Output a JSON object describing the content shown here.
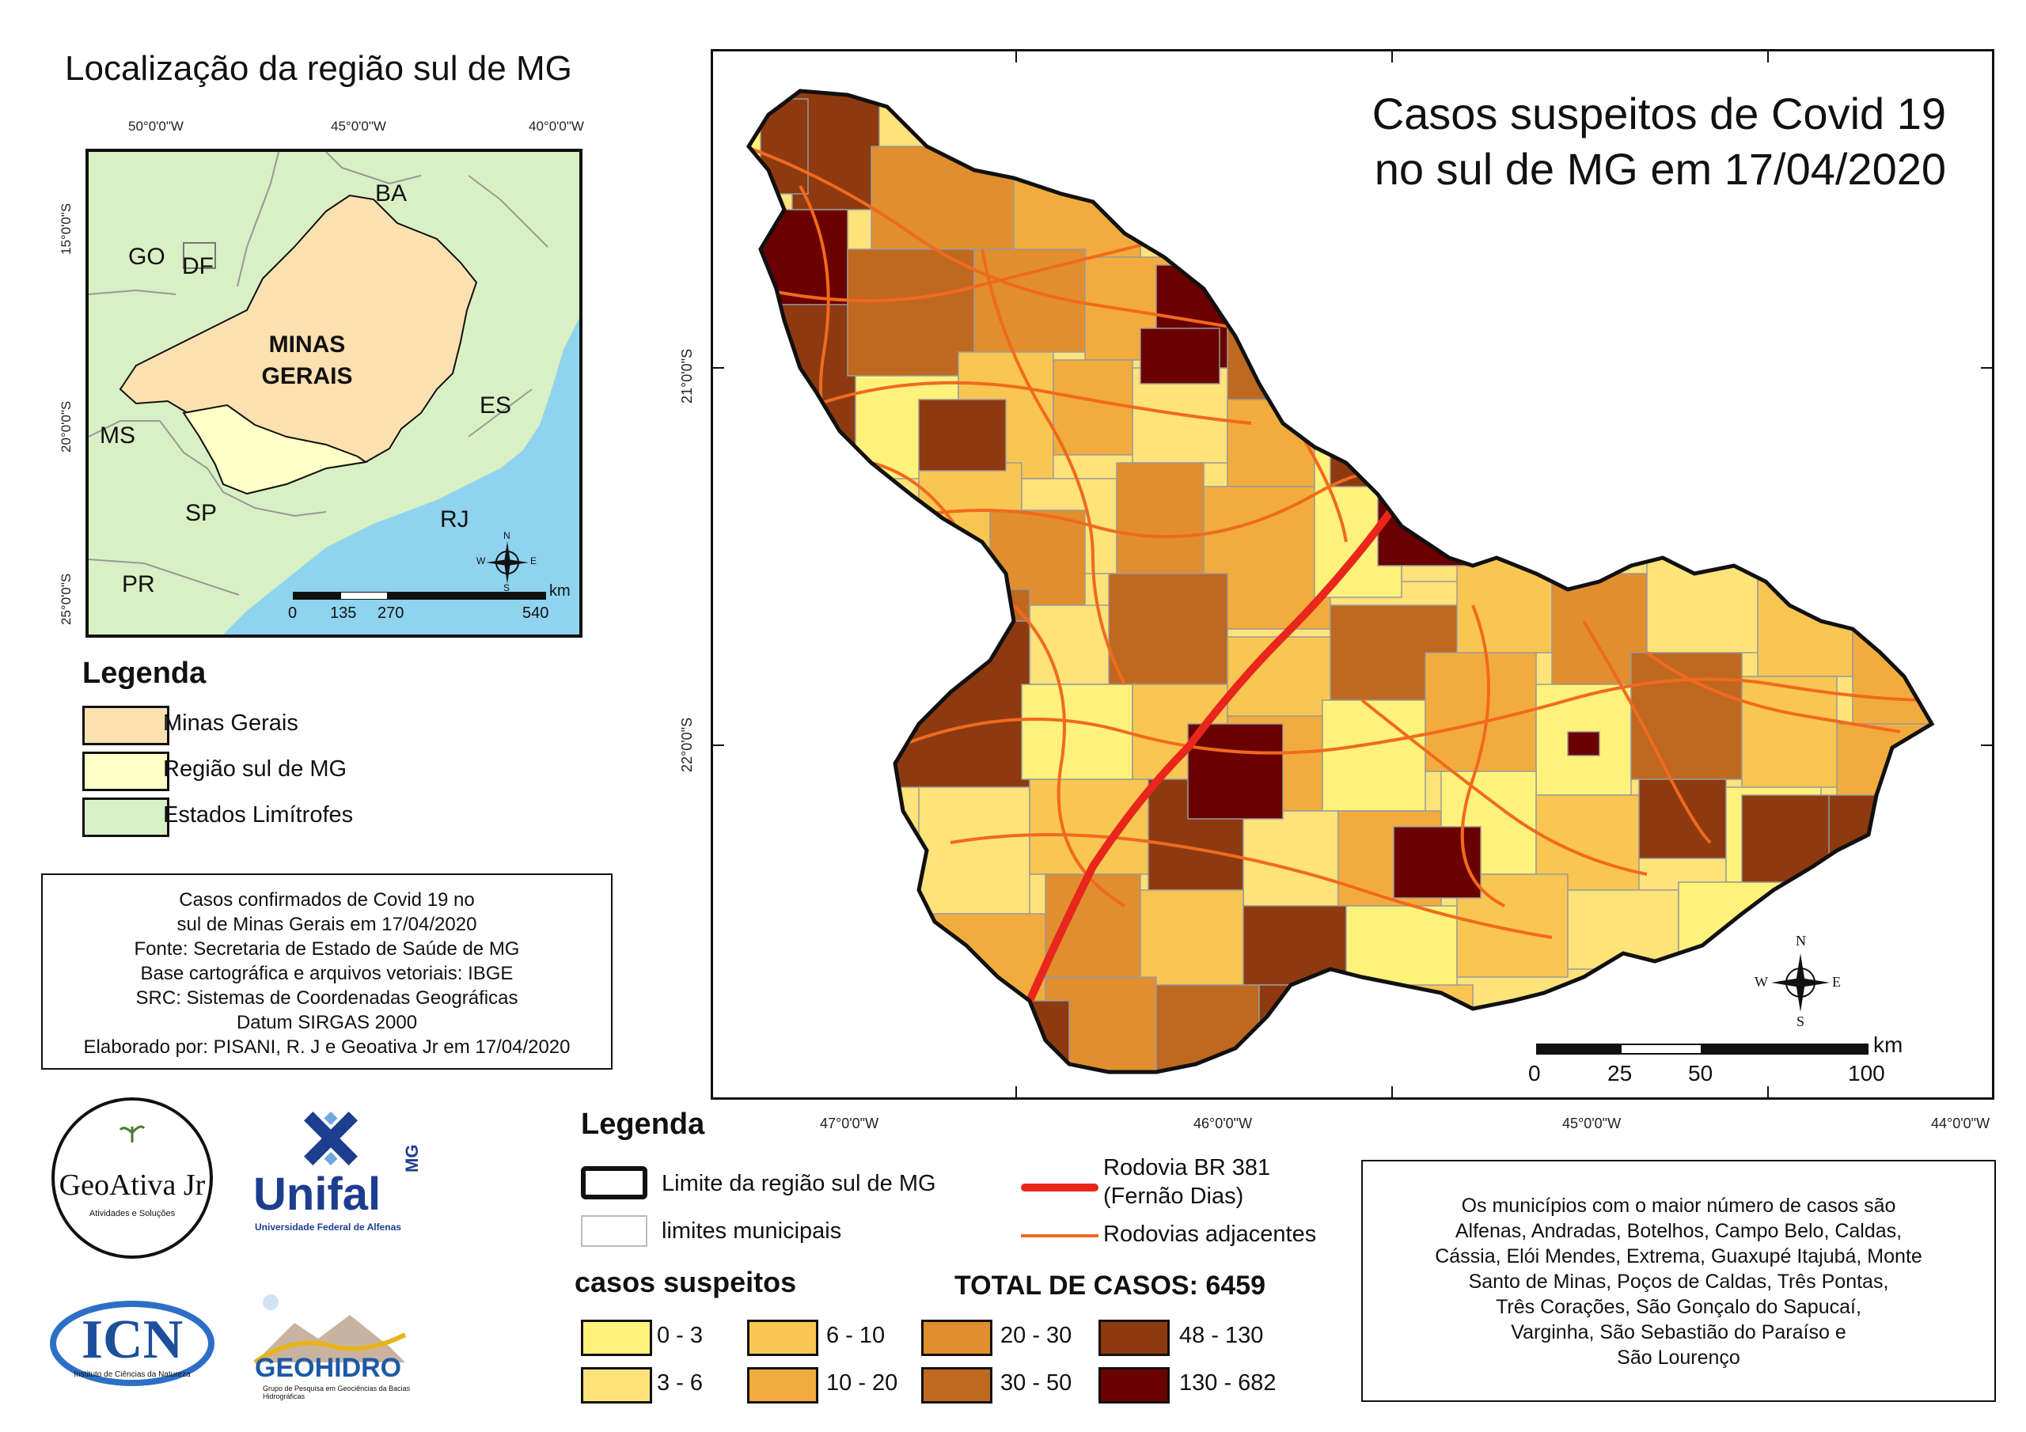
{
  "inset": {
    "title": "Localização da região sul de MG",
    "lon_labels": [
      "50°0'0\"W",
      "45°0'0\"W",
      "40°0'0\"W"
    ],
    "lat_labels": [
      "15°0'0\"S",
      "20°0'0\"S",
      "25°0'0\"S"
    ],
    "states": {
      "ba": "BA",
      "go": "GO",
      "df": "DF",
      "es": "ES",
      "ms": "MS",
      "sp": "SP",
      "rj": "RJ",
      "pr": "PR"
    },
    "mg_line1": "MINAS",
    "mg_line2": "GERAIS",
    "scale": {
      "unit": "km",
      "ticks": [
        "0",
        "135",
        "270",
        "540"
      ]
    },
    "compass": {
      "n": "N",
      "s": "S",
      "e": "E",
      "w": "W"
    }
  },
  "legend_left": {
    "title": "Legenda",
    "items": [
      {
        "label": "Minas Gerais",
        "color": "#fbe0b0"
      },
      {
        "label": "Região sul de MG",
        "color": "#ffffc8"
      },
      {
        "label": "Estados Limítrofes",
        "color": "#d9f0c4"
      }
    ]
  },
  "info": {
    "lines": [
      "Casos confirmados de Covid 19 no",
      "sul de Minas Gerais em 17/04/2020",
      "Fonte: Secretaria de Estado de Saúde de MG",
      "Base cartográfica e arquivos vetoriais: IBGE",
      "SRC: Sistemas de Coordenadas Geográficas",
      "Datum SIRGAS 2000",
      "Elaborado por: PISANI, R. J e Geoativa Jr em 17/04/2020"
    ]
  },
  "main_map": {
    "title_line1": "Casos suspeitos de Covid 19",
    "title_line2": "no sul de MG em 17/04/2020",
    "lon_labels": [
      "47°0'0\"W",
      "46°0'0\"W",
      "45°0'0\"W",
      "44°0'0\"W"
    ],
    "lat_labels": [
      "21°0'0\"S",
      "22°0'0\"S"
    ],
    "scale": {
      "unit": "km",
      "ticks": [
        "0",
        "25",
        "50",
        "100"
      ]
    },
    "compass": {
      "n": "N",
      "s": "S",
      "e": "E",
      "w": "W"
    }
  },
  "legend_bottom": {
    "title": "Legenda",
    "limit_label": "Limite da região sul de MG",
    "municipal_label": "limites municipais",
    "br381_line1": "Rodovia BR 381",
    "br381_line2": "(Fernão Dias)",
    "roads_label": "Rodovias adjacentes",
    "classes_title": "casos suspeitos",
    "total_label": "TOTAL DE CASOS: 6459",
    "classes": [
      {
        "label": "0 - 3",
        "color": "#fff27a"
      },
      {
        "label": "3 - 6",
        "color": "#fee27a"
      },
      {
        "label": "6 - 10",
        "color": "#f9c652"
      },
      {
        "label": "10 - 20",
        "color": "#f2ac3e"
      },
      {
        "label": "20 - 30",
        "color": "#e08e2e"
      },
      {
        "label": "30 - 50",
        "color": "#bf6820"
      },
      {
        "label": "48 - 130",
        "color": "#8e3a10"
      },
      {
        "label": "130 - 682",
        "color": "#6a0000"
      }
    ]
  },
  "note": {
    "lines": [
      "Os municípios com o maior número de casos são",
      "Alfenas, Andradas, Botelhos, Campo Belo, Caldas,",
      "Cássia, Elói Mendes, Extrema, Guaxupé Itajubá, Monte",
      "Santo de Minas, Poços de Caldas, Três Pontas,",
      "Três Corações, São Gonçalo do Sapucaí,",
      "Varginha, São Sebastião do Paraíso e",
      "São Lourenço"
    ]
  },
  "logos": {
    "geoativa": "GeoAtiva Jr",
    "geoativa_sub": "Atividades e Soluções",
    "unifal": "Unifal",
    "unifal_mg": "MG",
    "unifal_sub": "Universidade Federal de Alfenas",
    "icn": "ICN",
    "icn_sub": "Instituto de Ciências da Natureza",
    "geohidro": "GEOHIDRO",
    "geohidro_sub": "Grupo de Pesquisa em Geociências da Bacias Hidrográficas"
  },
  "colors": {
    "frame": "#111111",
    "ocean": "#8fd3ee",
    "neighbors": "#d9f0c4",
    "mg": "#fbe0b0",
    "south": "#ffffc8",
    "br381": "#e8261c",
    "roads": "#f06a1e"
  }
}
